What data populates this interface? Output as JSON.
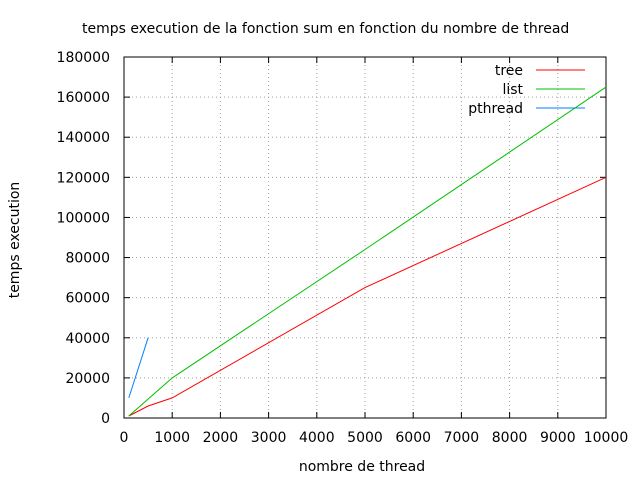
{
  "chart_data": {
    "type": "line",
    "title": "temps execution de la fonction sum en fonction du nombre de thread",
    "xlabel": "nombre de thread",
    "ylabel": "temps execution",
    "xlim": [
      0,
      10000
    ],
    "ylim": [
      0,
      180000
    ],
    "xticks": [
      "0",
      "1000",
      "2000",
      "3000",
      "4000",
      "5000",
      "6000",
      "7000",
      "8000",
      "9000",
      "10000"
    ],
    "yticks": [
      "0",
      "20000",
      "40000",
      "60000",
      "80000",
      "100000",
      "120000",
      "140000",
      "160000",
      "180000"
    ],
    "grid": true,
    "legend_position": "top-right",
    "series": [
      {
        "name": "tree",
        "color": "#ff0000",
        "x": [
          100,
          500,
          1000,
          5000,
          10000
        ],
        "y": [
          1000,
          6000,
          10000,
          65000,
          120000
        ]
      },
      {
        "name": "list",
        "color": "#00c000",
        "x": [
          100,
          1000,
          5000,
          10000
        ],
        "y": [
          1000,
          20000,
          84000,
          165000
        ]
      },
      {
        "name": "pthread",
        "color": "#0080ff",
        "x": [
          100,
          500
        ],
        "y": [
          10000,
          40000
        ]
      }
    ]
  }
}
